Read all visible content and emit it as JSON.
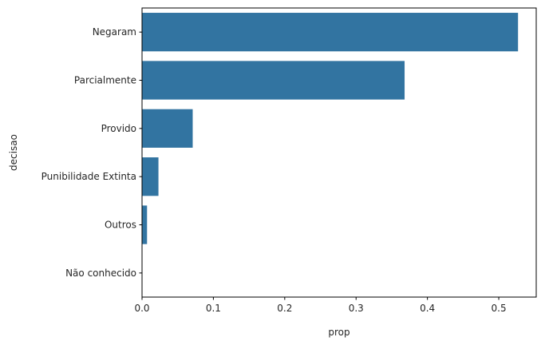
{
  "chart_data": {
    "type": "bar",
    "orientation": "horizontal",
    "categories": [
      "Negaram",
      "Parcialmente",
      "Provido",
      "Punibilidade Extinta",
      "Outros",
      "Não conhecido"
    ],
    "values": [
      0.527,
      0.368,
      0.071,
      0.023,
      0.007,
      0.0
    ],
    "xlabel": "prop",
    "ylabel": "decisao",
    "xlim": [
      0,
      0.5525
    ],
    "xticks": [
      0.0,
      0.1,
      0.2,
      0.3,
      0.4,
      0.5
    ],
    "xtick_labels": [
      "0.0",
      "0.1",
      "0.2",
      "0.3",
      "0.4",
      "0.5"
    ],
    "grid": false,
    "legend": "none",
    "bar_color": "#3274a1"
  }
}
